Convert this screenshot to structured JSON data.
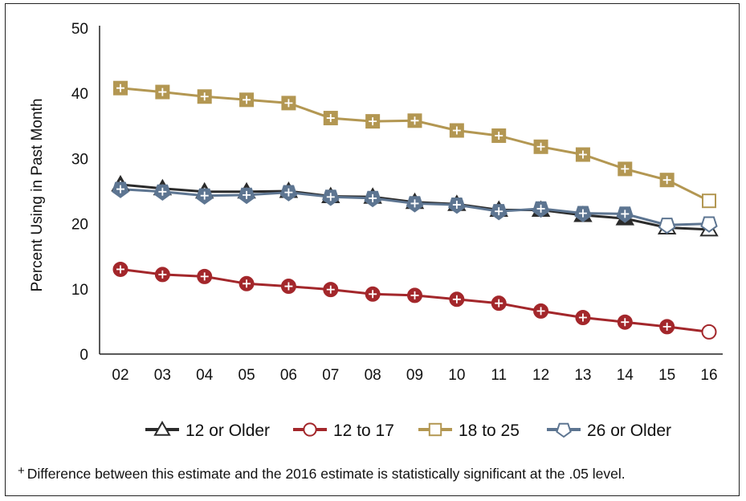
{
  "chart_data": {
    "type": "line",
    "title": "",
    "xlabel": "",
    "ylabel": "Percent Using in Past Month",
    "x": [
      "02",
      "03",
      "04",
      "05",
      "06",
      "07",
      "08",
      "09",
      "10",
      "11",
      "12",
      "13",
      "14",
      "15",
      "16"
    ],
    "ylim": [
      0,
      50
    ],
    "yticks": [
      0,
      10,
      20,
      30,
      40,
      50
    ],
    "grid": false,
    "legend_position": "bottom",
    "series": [
      {
        "name": "12 or Older",
        "marker": "triangle",
        "color": "#2b2b2b",
        "values": [
          26.0,
          25.4,
          24.9,
          24.9,
          25.0,
          24.2,
          24.1,
          23.3,
          23.0,
          22.1,
          22.1,
          21.3,
          20.8,
          19.4,
          19.1
        ],
        "significant": [
          true,
          true,
          true,
          true,
          true,
          true,
          true,
          true,
          true,
          true,
          true,
          true,
          true,
          false,
          false
        ]
      },
      {
        "name": "12 to 17",
        "marker": "circle",
        "color": "#a3272b",
        "values": [
          13.0,
          12.2,
          11.9,
          10.8,
          10.4,
          9.9,
          9.2,
          9.0,
          8.4,
          7.8,
          6.6,
          5.6,
          4.9,
          4.2,
          3.4
        ],
        "significant": [
          true,
          true,
          true,
          true,
          true,
          true,
          true,
          true,
          true,
          true,
          true,
          true,
          true,
          true,
          false
        ]
      },
      {
        "name": "18 to 25",
        "marker": "square",
        "color": "#b39752",
        "values": [
          40.8,
          40.2,
          39.5,
          39.0,
          38.5,
          36.2,
          35.7,
          35.8,
          34.3,
          33.5,
          31.8,
          30.6,
          28.4,
          26.7,
          23.5
        ],
        "significant": [
          true,
          true,
          true,
          true,
          true,
          true,
          true,
          true,
          true,
          true,
          true,
          true,
          true,
          true,
          false
        ]
      },
      {
        "name": "26 or Older",
        "marker": "pentagon",
        "color": "#5d7591",
        "values": [
          25.3,
          24.9,
          24.3,
          24.4,
          24.8,
          24.1,
          23.9,
          23.1,
          22.9,
          21.9,
          22.3,
          21.6,
          21.5,
          19.8,
          20.0
        ],
        "significant": [
          true,
          true,
          true,
          true,
          true,
          true,
          true,
          true,
          true,
          true,
          true,
          true,
          true,
          false,
          false
        ]
      }
    ],
    "footnote": {
      "symbol": "+",
      "text": "Difference between this estimate and the 2016 estimate is statistically significant at the .05 level."
    }
  }
}
